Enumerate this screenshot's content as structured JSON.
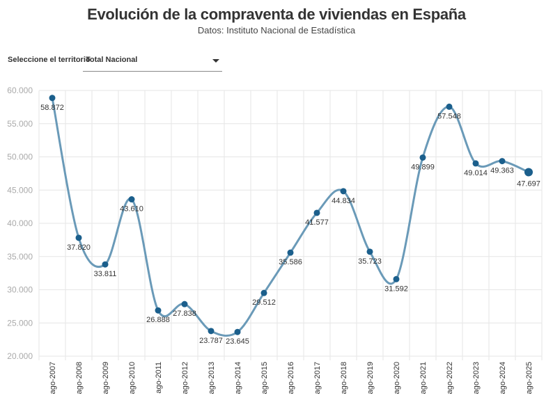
{
  "header": {
    "title": "Evolución de la compraventa de viviendas en España",
    "subtitle": "Datos: Instituto Nacional de Estadística"
  },
  "controls": {
    "territory_label": "Seleccione el territorio",
    "territory_selected": "Total Nacional",
    "dropdown_icon": "caret-down-icon"
  },
  "colors": {
    "line": "#6a9ab8",
    "marker": "#1b5f8c",
    "grid": "#e6e6e6"
  },
  "chart_data": {
    "type": "line",
    "title": "Evolución de la compraventa de viviendas en España",
    "subtitle": "Datos: Instituto Nacional de Estadística",
    "xlabel": "",
    "ylabel": "",
    "categories": [
      "ago-2007",
      "ago-2008",
      "ago-2009",
      "ago-2010",
      "ago-2011",
      "ago-2012",
      "ago-2013",
      "ago-2014",
      "ago-2015",
      "ago-2016",
      "ago-2017",
      "ago-2018",
      "ago-2019",
      "ago-2020",
      "ago-2021",
      "ago-2022",
      "ago-2023",
      "ago-2024",
      "ago-2025"
    ],
    "series": [
      {
        "name": "Total Nacional",
        "values": [
          58872,
          37820,
          33811,
          43610,
          26888,
          27838,
          23787,
          23645,
          29512,
          35586,
          41577,
          44834,
          35723,
          31592,
          49899,
          57548,
          49014,
          49363,
          47697
        ]
      }
    ],
    "data_labels": [
      "58.872",
      "37.820",
      "33.811",
      "43.610",
      "26.888",
      "27.838",
      "23.787",
      "23.645",
      "29.512",
      "35.586",
      "41.577",
      "44.834",
      "35.723",
      "31.592",
      "49.899",
      "57.548",
      "49.014",
      "49.363",
      "47.697"
    ],
    "ylim": [
      20000,
      60000
    ],
    "yticks": [
      20000,
      25000,
      30000,
      35000,
      40000,
      45000,
      50000,
      55000,
      60000
    ],
    "ytick_labels": [
      "20.000",
      "25.000",
      "30.000",
      "35.000",
      "40.000",
      "45.000",
      "50.000",
      "55.000",
      "60.000"
    ],
    "grid": true,
    "legend": "none",
    "smooth": true,
    "highlight_last_point": true
  }
}
